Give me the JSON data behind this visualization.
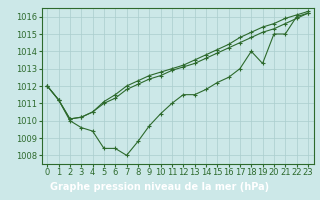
{
  "line1": [
    1012,
    1011.2,
    1010.0,
    1009.6,
    1009.4,
    1008.4,
    1008.4,
    1008.0,
    1008.8,
    1009.7,
    1010.4,
    1011.0,
    1011.5,
    1011.5,
    1011.8,
    1012.2,
    1012.5,
    1013.0,
    1014.0,
    1013.3,
    1015.0,
    1015.0,
    1016.0,
    1016.2
  ],
  "line2": [
    1012,
    1011.2,
    1010.1,
    1010.2,
    1010.5,
    1011.0,
    1011.3,
    1011.8,
    1012.1,
    1012.4,
    1012.6,
    1012.9,
    1013.1,
    1013.3,
    1013.6,
    1013.9,
    1014.2,
    1014.5,
    1014.8,
    1015.1,
    1015.3,
    1015.6,
    1015.9,
    1016.2
  ],
  "line3": [
    1012,
    1011.2,
    1010.1,
    1010.2,
    1010.5,
    1011.1,
    1011.5,
    1012.0,
    1012.3,
    1012.6,
    1012.8,
    1013.0,
    1013.2,
    1013.5,
    1013.8,
    1014.1,
    1014.4,
    1014.8,
    1015.1,
    1015.4,
    1015.6,
    1015.9,
    1016.1,
    1016.3
  ],
  "x": [
    0,
    1,
    2,
    3,
    4,
    5,
    6,
    7,
    8,
    9,
    10,
    11,
    12,
    13,
    14,
    15,
    16,
    17,
    18,
    19,
    20,
    21,
    22,
    23
  ],
  "xlim": [
    -0.5,
    23.5
  ],
  "ylim": [
    1007.5,
    1016.5
  ],
  "yticks": [
    1008,
    1009,
    1010,
    1011,
    1012,
    1013,
    1014,
    1015,
    1016
  ],
  "line_color": "#2d6a2d",
  "marker": "+",
  "bg_color": "#cce8e8",
  "grid_color": "#aacece",
  "xlabel": "Graphe pression niveau de la mer (hPa)",
  "xlabel_bg": "#2d6a2d",
  "xlabel_fg": "#ffffff",
  "tick_fontsize": 6,
  "xlabel_fontsize": 7
}
